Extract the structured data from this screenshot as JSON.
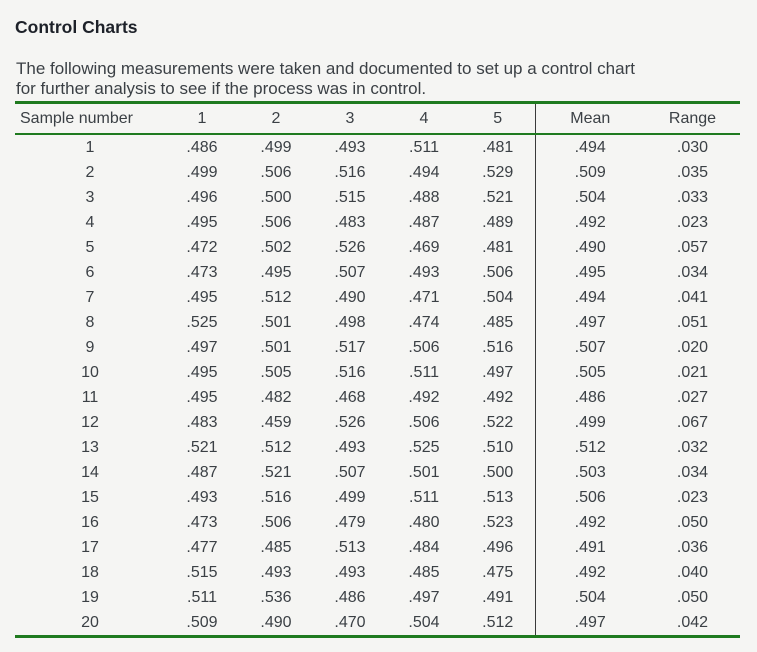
{
  "page": {
    "title": "Control Charts",
    "intro_lines": [
      "The following measurements were taken and documented to set up a control chart",
      "for further analysis to see if the process was in control."
    ]
  },
  "table": {
    "columns": [
      "Sample number",
      "1",
      "2",
      "3",
      "4",
      "5",
      "Mean",
      "Range"
    ],
    "rows": [
      {
        "sample": "1",
        "values": [
          ".486",
          ".499",
          ".493",
          ".511",
          ".481"
        ],
        "mean": ".494",
        "range": ".030"
      },
      {
        "sample": "2",
        "values": [
          ".499",
          ".506",
          ".516",
          ".494",
          ".529"
        ],
        "mean": ".509",
        "range": ".035"
      },
      {
        "sample": "3",
        "values": [
          ".496",
          ".500",
          ".515",
          ".488",
          ".521"
        ],
        "mean": ".504",
        "range": ".033"
      },
      {
        "sample": "4",
        "values": [
          ".495",
          ".506",
          ".483",
          ".487",
          ".489"
        ],
        "mean": ".492",
        "range": ".023"
      },
      {
        "sample": "5",
        "values": [
          ".472",
          ".502",
          ".526",
          ".469",
          ".481"
        ],
        "mean": ".490",
        "range": ".057"
      },
      {
        "sample": "6",
        "values": [
          ".473",
          ".495",
          ".507",
          ".493",
          ".506"
        ],
        "mean": ".495",
        "range": ".034"
      },
      {
        "sample": "7",
        "values": [
          ".495",
          ".512",
          ".490",
          ".471",
          ".504"
        ],
        "mean": ".494",
        "range": ".041"
      },
      {
        "sample": "8",
        "values": [
          ".525",
          ".501",
          ".498",
          ".474",
          ".485"
        ],
        "mean": ".497",
        "range": ".051"
      },
      {
        "sample": "9",
        "values": [
          ".497",
          ".501",
          ".517",
          ".506",
          ".516"
        ],
        "mean": ".507",
        "range": ".020"
      },
      {
        "sample": "10",
        "values": [
          ".495",
          ".505",
          ".516",
          ".511",
          ".497"
        ],
        "mean": ".505",
        "range": ".021"
      },
      {
        "sample": "11",
        "values": [
          ".495",
          ".482",
          ".468",
          ".492",
          ".492"
        ],
        "mean": ".486",
        "range": ".027"
      },
      {
        "sample": "12",
        "values": [
          ".483",
          ".459",
          ".526",
          ".506",
          ".522"
        ],
        "mean": ".499",
        "range": ".067"
      },
      {
        "sample": "13",
        "values": [
          ".521",
          ".512",
          ".493",
          ".525",
          ".510"
        ],
        "mean": ".512",
        "range": ".032"
      },
      {
        "sample": "14",
        "values": [
          ".487",
          ".521",
          ".507",
          ".501",
          ".500"
        ],
        "mean": ".503",
        "range": ".034"
      },
      {
        "sample": "15",
        "values": [
          ".493",
          ".516",
          ".499",
          ".511",
          ".513"
        ],
        "mean": ".506",
        "range": ".023"
      },
      {
        "sample": "16",
        "values": [
          ".473",
          ".506",
          ".479",
          ".480",
          ".523"
        ],
        "mean": ".492",
        "range": ".050"
      },
      {
        "sample": "17",
        "values": [
          ".477",
          ".485",
          ".513",
          ".484",
          ".496"
        ],
        "mean": ".491",
        "range": ".036"
      },
      {
        "sample": "18",
        "values": [
          ".515",
          ".493",
          ".493",
          ".485",
          ".475"
        ],
        "mean": ".492",
        "range": ".040"
      },
      {
        "sample": "19",
        "values": [
          ".511",
          ".536",
          ".486",
          ".497",
          ".491"
        ],
        "mean": ".504",
        "range": ".050"
      },
      {
        "sample": "20",
        "values": [
          ".509",
          ".490",
          ".470",
          ".504",
          ".512"
        ],
        "mean": ".497",
        "range": ".042"
      }
    ]
  },
  "colors": {
    "accent_green": "#1f7a1f",
    "divider_dark": "#3a3a3a",
    "background": "#f5f5f3",
    "text": "#3b4045"
  }
}
